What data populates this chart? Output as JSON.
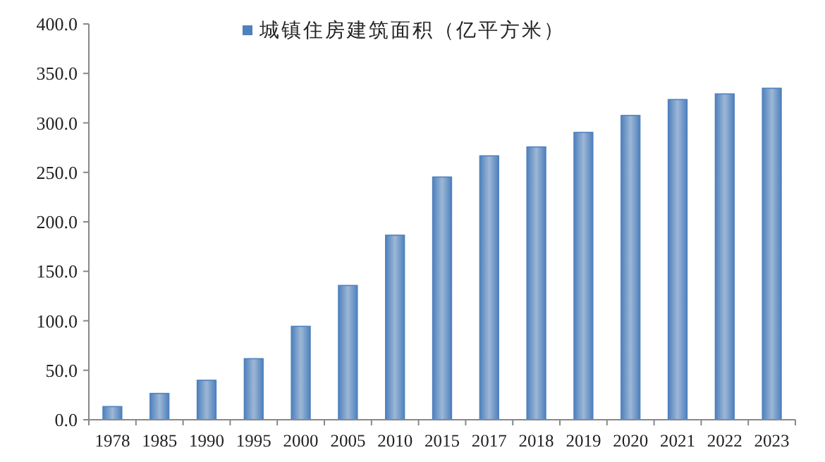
{
  "chart_data": {
    "type": "bar",
    "categories": [
      "1978",
      "1985",
      "1990",
      "1995",
      "2000",
      "2005",
      "2010",
      "2015",
      "2017",
      "2018",
      "2019",
      "2020",
      "2021",
      "2022",
      "2023"
    ],
    "series": [
      {
        "name": "城镇住房建筑面积（亿平方米）",
        "color": "#4f81bd",
        "values": [
          13.3,
          26.6,
          39.9,
          61.7,
          94.4,
          135.7,
          186.5,
          245.3,
          266.7,
          275.7,
          290.4,
          307.5,
          323.6,
          329.3,
          335.0
        ]
      }
    ],
    "ylim": [
      0,
      400
    ],
    "yticks": [
      {
        "value": 0,
        "label": "0.0"
      },
      {
        "value": 50,
        "label": "50.0"
      },
      {
        "value": 100,
        "label": "100.0"
      },
      {
        "value": 150,
        "label": "150.0"
      },
      {
        "value": 200,
        "label": "200.0"
      },
      {
        "value": 250,
        "label": "250.0"
      },
      {
        "value": 300,
        "label": "300.0"
      },
      {
        "value": 350,
        "label": "350.0"
      },
      {
        "value": 400,
        "label": "400.0"
      }
    ],
    "legend": "top"
  }
}
